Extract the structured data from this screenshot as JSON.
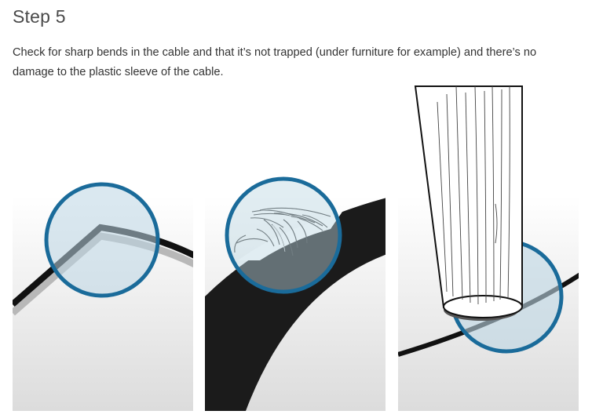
{
  "step": {
    "title": "Step 5",
    "description": "Check for sharp bends in the cable and that it’s not trapped (under furniture for example) and there’s no damage to the plastic sleeve of the cable."
  },
  "illustrations": [
    {
      "id": "sharp-bend"
    },
    {
      "id": "damaged-sleeve"
    },
    {
      "id": "trapped-under-furniture"
    }
  ],
  "colors": {
    "cable": "#111111",
    "cable_shadow": "#b8b8b8",
    "highlight_ring": "#1a6b9a",
    "highlight_fill": "#bcd6e3",
    "panel_top": "#ffffff",
    "panel_bottom": "#dcdcdc"
  }
}
